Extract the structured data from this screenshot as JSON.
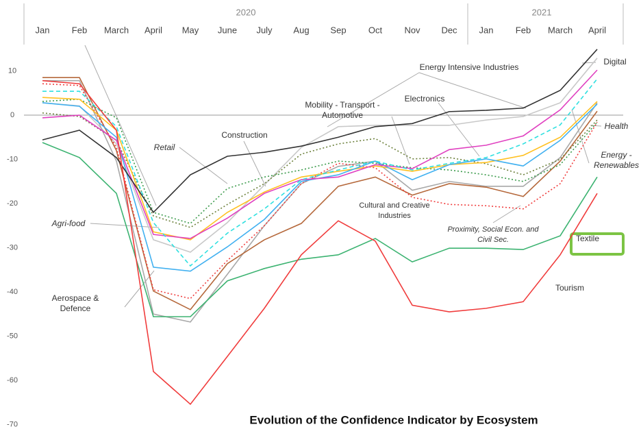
{
  "chart_data": {
    "type": "line",
    "title": "Evolution of the Confidence Indicator by Ecosystem",
    "groups": [
      {
        "label": "2020",
        "span": 12
      },
      {
        "label": "2021",
        "span": 4
      }
    ],
    "categories": [
      "Jan",
      "Feb",
      "March",
      "April",
      "May",
      "June",
      "July",
      "Aug",
      "Sep",
      "Oct",
      "Nov",
      "Dec",
      "Jan",
      "Feb",
      "March",
      "April"
    ],
    "ylim": [
      -70,
      16.5
    ],
    "yticks": [
      10,
      0,
      -10,
      -20,
      -30,
      -40,
      -50,
      -60,
      -70
    ],
    "zero_line": true,
    "series": [
      {
        "color": "#c8c8c8",
        "dash": "solid",
        "values": [
          2.8,
          2.1,
          -6.5,
          -28.2,
          -31,
          -24.3,
          -15.8,
          -7.3,
          -2.6,
          -2.3,
          -2.3,
          -2.3,
          -1.1,
          -0.3,
          2.8,
          12.9
        ]
      },
      {
        "color": "#a8a8a8",
        "dash": "solid",
        "values": [
          7.8,
          7.8,
          -10.4,
          -45,
          -46.8,
          -36,
          -25,
          -15.5,
          -11.6,
          -10.4,
          -17,
          -15,
          -16.1,
          -16.1,
          -9.6,
          2.8
        ]
      },
      {
        "color": "#b5683b",
        "dash": "solid",
        "values": [
          8.5,
          8.5,
          -8,
          -39.8,
          -44,
          -33.6,
          -28.2,
          -24.5,
          -16.1,
          -14,
          -18.1,
          -15.5,
          -16.3,
          -18.4,
          -10.4,
          0.9
        ]
      },
      {
        "color": "#f03c3c",
        "dash": "dotted",
        "values": [
          7.1,
          6.7,
          -7.3,
          -39.5,
          -41.5,
          -32.9,
          -25,
          -15.5,
          -10.9,
          -11.9,
          -18.6,
          -20.2,
          -20.5,
          -21.2,
          -15.5,
          -1.6
        ]
      },
      {
        "color": "#3a9a4a",
        "dash": "dotted",
        "values": [
          3.1,
          3.6,
          -0.6,
          -22,
          -24.5,
          -16.6,
          -14,
          -12.4,
          -10.4,
          -10.9,
          -11.9,
          -12.4,
          -13.5,
          -15,
          -11.2,
          -1.6
        ]
      },
      {
        "color": "#6b7f3a",
        "dash": "dotted",
        "values": [
          0.5,
          -0.3,
          -5.7,
          -22.8,
          -25.4,
          -20.2,
          -15.5,
          -8.8,
          -6.5,
          -5.3,
          -9.9,
          -9.6,
          -11,
          -13.5,
          -10,
          -1.1
        ]
      },
      {
        "color": "#ffc020",
        "dash": "solid",
        "values": [
          4,
          3.6,
          -3.4,
          -26.4,
          -28.2,
          -22,
          -17.4,
          -14,
          -12.7,
          -11.5,
          -12.7,
          -11.2,
          -10.7,
          -9.1,
          -5,
          3.1
        ]
      },
      {
        "color": "#40b0f0",
        "dash": "solid",
        "values": [
          2.8,
          2,
          -5,
          -34.4,
          -35.3,
          -29.8,
          -23.6,
          -15,
          -13.5,
          -10.4,
          -14.6,
          -11.2,
          -9.9,
          -11.5,
          -5.7,
          2.5
        ]
      },
      {
        "color": "#e040c0",
        "dash": "solid",
        "values": [
          -0.6,
          0,
          -5.7,
          -27,
          -27.9,
          -23.3,
          -17.7,
          -14.6,
          -14,
          -11.2,
          -12.1,
          -7.8,
          -6.8,
          -4.7,
          1.2,
          10.2
        ]
      },
      {
        "color": "#2ee0e0",
        "dash": "dashed",
        "values": [
          5.4,
          5.4,
          -2.6,
          -24.3,
          -34.1,
          -26.7,
          -21.2,
          -14.6,
          -12.4,
          -10.4,
          -12.4,
          -10.9,
          -9.6,
          -6.5,
          -2.2,
          8.2
        ]
      },
      {
        "color": "#3cb371",
        "dash": "solid",
        "values": [
          -6.2,
          -9.6,
          -17.7,
          -45.6,
          -45.6,
          -37.5,
          -34.7,
          -32.6,
          -31.6,
          -27.9,
          -33.2,
          -30.1,
          -30.1,
          -30.4,
          -27.3,
          -14
        ]
      },
      {
        "color": "#333333",
        "dash": "solid",
        "values": [
          -5.6,
          -3.4,
          -9.6,
          -22,
          -13.5,
          -9.3,
          -8.4,
          -7,
          -5,
          -2.6,
          -1.9,
          0.8,
          1.1,
          1.6,
          5.6,
          14.9
        ]
      },
      {
        "color": "#f03c3c",
        "dash": "solid",
        "values": [
          7.8,
          7.1,
          -3.4,
          -58,
          -65.4,
          -54.6,
          -43.7,
          -31.6,
          -23.9,
          -28.5,
          -43,
          -44.5,
          -43.7,
          -42.2,
          -31.6,
          -17.7
        ]
      }
    ],
    "annotations": [
      "Energy Intensive Industries",
      "Digital",
      "Electronics",
      "Mobility - Transport - Automotive",
      "Construction",
      "Retail",
      "Health",
      "Energy - Renewables",
      "Agri-food",
      "Cultural and Creative Industries",
      "Proximity, Social Econ. and Civil Sec.",
      "Textile",
      "Tourism",
      "Aerospace & Defence"
    ]
  }
}
